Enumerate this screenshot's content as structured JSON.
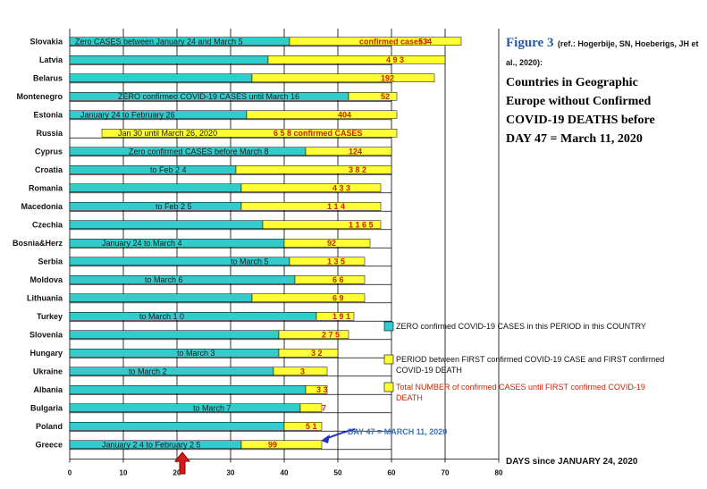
{
  "figure": {
    "label": "Figure 3",
    "ref": "(ref.: Hogerbije, SN, Hoeberigs, JH et al., 2020):",
    "title_lines": [
      "Countries in Geographic",
      "Europe without Confirmed",
      "COVID-19 DEATHS before",
      "DAY 47 = March 11, 2020"
    ]
  },
  "chart_data": {
    "type": "bar",
    "orientation": "horizontal",
    "stacked": true,
    "xlabel": "DAYS since JANUARY 24, 2020",
    "xlim": [
      0,
      80
    ],
    "xticks": [
      0,
      10,
      20,
      30,
      40,
      50,
      60,
      70,
      80
    ],
    "categories": [
      "Slovakia",
      "Latvia",
      "Belarus",
      "Montenegro",
      "Estonia",
      "Russia",
      "Cyprus",
      "Croatia",
      "Romania",
      "Macedonia",
      "Czechia",
      "Bosnia&Herz",
      "Serbia",
      "Moldova",
      "Lithuania",
      "Turkey",
      "Slovenia",
      "Hungary",
      "Ukraine",
      "Albania",
      "Bulgaria",
      "Poland",
      "Greece"
    ],
    "series": [
      {
        "name": "ZERO confirmed COVID-19 CASES in this PERIOD in this COUNTRY",
        "color": "#33cccc",
        "starts": [
          0,
          0,
          0,
          0,
          0,
          6,
          0,
          0,
          0,
          0,
          0,
          0,
          0,
          0,
          0,
          0,
          0,
          0,
          0,
          0,
          0,
          0,
          0
        ],
        "values": [
          41,
          37,
          34,
          52,
          33,
          0,
          44,
          31,
          32,
          32,
          36,
          40,
          41,
          42,
          34,
          46,
          39,
          39,
          38,
          44,
          43,
          40,
          32
        ]
      },
      {
        "name": "PERIOD between FIRST confirmed COVID-19 CASE and FIRST confirmed COVID-19 DEATH",
        "color": "#ffff33",
        "values": [
          32,
          33,
          34,
          9,
          28,
          55,
          16,
          29,
          26,
          26,
          22,
          16,
          14,
          13,
          21,
          7,
          13,
          11,
          10,
          4,
          4,
          7,
          15
        ]
      }
    ],
    "cases_label_series": "Total NUMBER of confirmed CASES until FIRST confirmed COVID-19 DEATH",
    "cases_labels": [
      {
        "text": "confirmed cases =",
        "x": 54
      },
      {
        "text": "534",
        "x": 65
      },
      {
        "text": "4 9 3",
        "x": 59
      },
      {
        "text": "192",
        "x": 58
      },
      {
        "text": "52",
        "x": 58
      },
      {
        "text": "404",
        "x": 50
      },
      {
        "text": "6 5 8 confirmed CASES",
        "x": 38
      },
      {
        "text": "124",
        "x": 52
      },
      {
        "text": "3 8 2",
        "x": 52
      },
      {
        "text": "4 3 3",
        "x": 49
      },
      {
        "text": "1 1 4",
        "x": 48
      },
      {
        "text": "1 1 6 5",
        "x": 52
      },
      {
        "text": "92",
        "x": 48
      },
      {
        "text": "1 3 5",
        "x": 48
      },
      {
        "text": "6 6",
        "x": 49
      },
      {
        "text": "6 9",
        "x": 49
      },
      {
        "text": "1 9 1",
        "x": 49
      },
      {
        "text": "2 7 5",
        "x": 47
      },
      {
        "text": "3 2",
        "x": 45
      },
      {
        "text": "3",
        "x": 43
      },
      {
        "text": "3 3",
        "x": 46
      },
      {
        "text": "7",
        "x": 47
      },
      {
        "text": "5 1",
        "x": 44
      },
      {
        "text": "99",
        "x": 37
      }
    ],
    "annotations": [
      {
        "row": 0,
        "text": "Zero CASES between January 24 and March 5",
        "x": 1
      },
      {
        "row": 3,
        "text": "ZERO confirmed COVID-19 CASES until March 16",
        "x": 9
      },
      {
        "row": 4,
        "text": "January 24 to February 26",
        "x": 2
      },
      {
        "row": 5,
        "text": "Jan 30 until March 26, 2020",
        "x": 9
      },
      {
        "row": 6,
        "text": "Zero confirmed CASES before March 8",
        "x": 11
      },
      {
        "row": 7,
        "text": "to Feb 2 4",
        "x": 15
      },
      {
        "row": 9,
        "text": "to Feb 2 5",
        "x": 16
      },
      {
        "row": 11,
        "text": "January 24 to March 4",
        "x": 6
      },
      {
        "row": 12,
        "text": "to March 5",
        "x": 30
      },
      {
        "row": 13,
        "text": "to March 6",
        "x": 14
      },
      {
        "row": 15,
        "text": "to March 1 0",
        "x": 13
      },
      {
        "row": 17,
        "text": "to March 3",
        "x": 20
      },
      {
        "row": 18,
        "text": "to March 2",
        "x": 11
      },
      {
        "row": 20,
        "text": "to March 7",
        "x": 23
      },
      {
        "row": 22,
        "text": "January 2 4 to February 2 5",
        "x": 6
      }
    ],
    "reference_line": {
      "x": 47,
      "label": "DAY 47 = MARCH 11, 2020"
    },
    "marker_x": 21,
    "legend_position": "right"
  }
}
